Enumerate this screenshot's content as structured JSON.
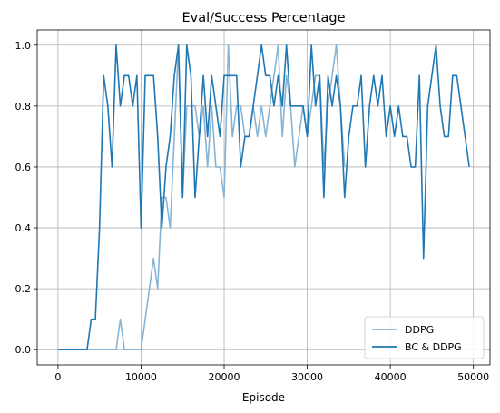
{
  "chart_data": {
    "type": "line",
    "title": "Eval/Success Percentage",
    "xlabel": "Episode",
    "ylabel": "",
    "xlim": [
      -2500,
      52000
    ],
    "ylim": [
      -0.05,
      1.05
    ],
    "xticks": [
      0,
      10000,
      20000,
      30000,
      40000,
      50000
    ],
    "xtick_labels": [
      "0",
      "10000",
      "20000",
      "30000",
      "40000",
      "50000"
    ],
    "yticks": [
      0.0,
      0.2,
      0.4,
      0.6,
      0.8,
      1.0
    ],
    "ytick_labels": [
      "0.0",
      "0.2",
      "0.4",
      "0.6",
      "0.8",
      "1.0"
    ],
    "grid": true,
    "legend": {
      "position": "lower-right"
    },
    "series": [
      {
        "name": "DDPG",
        "color": "#86b4d4",
        "x": [
          0,
          3500,
          7000,
          7500,
          8000,
          9000,
          10000,
          10500,
          11500,
          12000,
          12500,
          13000,
          13500,
          14500,
          15000,
          15500,
          16000,
          16500,
          17000,
          17500,
          18000,
          18500,
          19000,
          19500,
          20000,
          20500,
          21000,
          21500,
          22000,
          22500,
          23000,
          23500,
          24000,
          24500,
          25000,
          25500,
          26000,
          26500,
          27000,
          27500,
          28000,
          28500,
          29000,
          29500,
          30000,
          30500,
          31000,
          31500,
          32000,
          32500,
          33000,
          33500,
          34000,
          34500
        ],
        "values": [
          0.0,
          0.0,
          0.0,
          0.1,
          0.0,
          0.0,
          0.0,
          0.1,
          0.3,
          0.2,
          0.5,
          0.5,
          0.4,
          1.0,
          0.5,
          0.8,
          0.8,
          0.8,
          0.7,
          0.8,
          0.6,
          0.8,
          0.6,
          0.6,
          0.5,
          1.0,
          0.7,
          0.8,
          0.8,
          0.7,
          0.7,
          0.8,
          0.7,
          0.8,
          0.7,
          0.8,
          0.9,
          1.0,
          0.7,
          0.9,
          0.8,
          0.6,
          0.7,
          0.8,
          0.7,
          0.8,
          0.9,
          0.9,
          0.6,
          0.8,
          0.9,
          1.0,
          0.8,
          0.6
        ]
      },
      {
        "name": "BC & DDPG",
        "color": "#1f77b4",
        "x": [
          0,
          3500,
          4000,
          4500,
          5000,
          5500,
          6000,
          6500,
          7000,
          7500,
          8000,
          8500,
          9000,
          9500,
          10000,
          10500,
          11000,
          11500,
          12000,
          12500,
          13000,
          13500,
          14000,
          14500,
          15000,
          15500,
          16000,
          16500,
          17000,
          17500,
          18000,
          18500,
          19000,
          19500,
          20000,
          20500,
          21000,
          21500,
          22000,
          22500,
          23000,
          23500,
          24000,
          24500,
          25000,
          25500,
          26000,
          26500,
          27000,
          27500,
          28000,
          28500,
          29000,
          29500,
          30000,
          30500,
          31000,
          31500,
          32000,
          32500,
          33000,
          33500,
          34000,
          34500,
          35000,
          35500,
          36000,
          36500,
          37000,
          37500,
          38000,
          38500,
          39000,
          39500,
          40000,
          40500,
          41000,
          41500,
          42000,
          42500,
          43000,
          43500,
          44000,
          44500,
          45000,
          45500,
          46000,
          46500,
          47000,
          47500,
          48000,
          48500,
          49000,
          49500
        ],
        "values": [
          0.0,
          0.0,
          0.1,
          0.1,
          0.4,
          0.9,
          0.8,
          0.6,
          1.0,
          0.8,
          0.9,
          0.9,
          0.8,
          0.9,
          0.4,
          0.9,
          0.9,
          0.9,
          0.7,
          0.4,
          0.6,
          0.7,
          0.9,
          1.0,
          0.5,
          1.0,
          0.9,
          0.5,
          0.7,
          0.9,
          0.7,
          0.9,
          0.8,
          0.7,
          0.9,
          0.9,
          0.9,
          0.9,
          0.6,
          0.7,
          0.7,
          0.8,
          0.9,
          1.0,
          0.9,
          0.9,
          0.8,
          0.9,
          0.8,
          1.0,
          0.8,
          0.8,
          0.8,
          0.8,
          0.7,
          1.0,
          0.8,
          0.9,
          0.5,
          0.9,
          0.8,
          0.9,
          0.8,
          0.5,
          0.7,
          0.8,
          0.8,
          0.9,
          0.6,
          0.8,
          0.9,
          0.8,
          0.9,
          0.7,
          0.8,
          0.7,
          0.8,
          0.7,
          0.7,
          0.6,
          0.6,
          0.9,
          0.3,
          0.8,
          0.9,
          1.0,
          0.8,
          0.7,
          0.7,
          0.9,
          0.9,
          0.8,
          0.7,
          0.6
        ]
      }
    ]
  }
}
